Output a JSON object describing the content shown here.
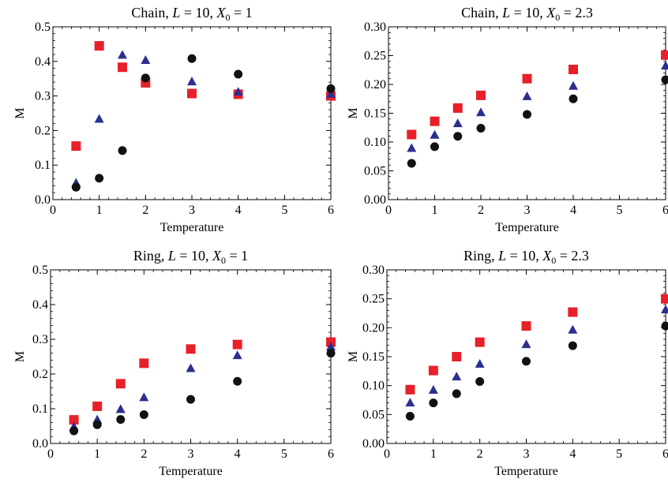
{
  "chart_data": [
    {
      "type": "scatter",
      "title": "Chain, L = 10, X0 = 1",
      "title_parts": {
        "prefix": "Chain, ",
        "L": "L",
        "eq1": " = 10, ",
        "X": "X",
        "sub": "0",
        "eq2": " = 1"
      },
      "xlabel": "Temperature",
      "ylabel": "M",
      "xlim": [
        0,
        6
      ],
      "ylim": [
        0,
        0.5
      ],
      "xticks": [
        "0",
        "1",
        "2",
        "3",
        "4",
        "5",
        "6"
      ],
      "yticks": [
        "0.0",
        "0.1",
        "0.2",
        "0.3",
        "0.4",
        "0.5"
      ],
      "x": [
        0.5,
        1,
        1.5,
        2,
        3,
        4,
        6
      ],
      "series": [
        {
          "marker": "square",
          "color": "#e8202a",
          "values": [
            0.155,
            0.445,
            0.383,
            0.338,
            0.307,
            0.305,
            0.3
          ]
        },
        {
          "marker": "triangle",
          "color": "#2b2f8f",
          "values": [
            0.048,
            0.233,
            0.418,
            0.403,
            0.341,
            0.311,
            0.305
          ]
        },
        {
          "marker": "circle",
          "color": "#111111",
          "values": [
            0.036,
            0.062,
            0.142,
            0.352,
            0.408,
            0.363,
            0.321
          ]
        }
      ]
    },
    {
      "type": "scatter",
      "title": "Chain, L = 10, X0 = 2.3",
      "title_parts": {
        "prefix": "Chain, ",
        "L": "L",
        "eq1": " = 10, ",
        "X": "X",
        "sub": "0",
        "eq2": " = 2.3"
      },
      "xlabel": "Temperature",
      "ylabel": "M",
      "xlim": [
        0,
        6
      ],
      "ylim": [
        0,
        0.3
      ],
      "xticks": [
        "0",
        "1",
        "2",
        "3",
        "4",
        "5",
        "6"
      ],
      "yticks": [
        "0.00",
        "0.05",
        "0.10",
        "0.15",
        "0.20",
        "0.25",
        "0.30"
      ],
      "x": [
        0.5,
        1,
        1.5,
        2,
        3,
        4,
        6
      ],
      "series": [
        {
          "marker": "square",
          "color": "#e8202a",
          "values": [
            0.113,
            0.136,
            0.159,
            0.181,
            0.21,
            0.226,
            0.251
          ]
        },
        {
          "marker": "triangle",
          "color": "#2b2f8f",
          "values": [
            0.089,
            0.112,
            0.132,
            0.151,
            0.179,
            0.197,
            0.232
          ]
        },
        {
          "marker": "circle",
          "color": "#111111",
          "values": [
            0.063,
            0.092,
            0.11,
            0.124,
            0.148,
            0.175,
            0.208
          ]
        }
      ]
    },
    {
      "type": "scatter",
      "title": "Ring, L = 10, X0 = 1",
      "title_parts": {
        "prefix": "Ring, ",
        "L": "L",
        "eq1": " = 10, ",
        "X": "X",
        "sub": "0",
        "eq2": " = 1"
      },
      "xlabel": "Temperature",
      "ylabel": "M",
      "xlim": [
        0,
        6
      ],
      "ylim": [
        0,
        0.5
      ],
      "xticks": [
        "0",
        "1",
        "2",
        "3",
        "4",
        "5",
        "6"
      ],
      "yticks": [
        "0.0",
        "0.1",
        "0.2",
        "0.3",
        "0.4",
        "0.5"
      ],
      "x": [
        0.5,
        1,
        1.5,
        2,
        3,
        4,
        6
      ],
      "series": [
        {
          "marker": "square",
          "color": "#e8202a",
          "values": [
            0.068,
            0.107,
            0.172,
            0.231,
            0.272,
            0.285,
            0.292
          ]
        },
        {
          "marker": "triangle",
          "color": "#2b2f8f",
          "values": [
            0.048,
            0.068,
            0.098,
            0.132,
            0.216,
            0.253,
            0.278
          ]
        },
        {
          "marker": "circle",
          "color": "#111111",
          "values": [
            0.036,
            0.054,
            0.069,
            0.083,
            0.127,
            0.179,
            0.26
          ]
        }
      ]
    },
    {
      "type": "scatter",
      "title": "Ring, L = 10, X0 = 2.3",
      "title_parts": {
        "prefix": "Ring, ",
        "L": "L",
        "eq1": " = 10, ",
        "X": "X",
        "sub": "0",
        "eq2": " = 2.3"
      },
      "xlabel": "Temperature",
      "ylabel": "M",
      "xlim": [
        0,
        6
      ],
      "ylim": [
        0,
        0.3
      ],
      "xticks": [
        "0",
        "1",
        "2",
        "3",
        "4",
        "5",
        "6"
      ],
      "yticks": [
        "0.00",
        "0.05",
        "0.10",
        "0.15",
        "0.20",
        "0.25",
        "0.30"
      ],
      "x": [
        0.5,
        1,
        1.5,
        2,
        3,
        4,
        6
      ],
      "series": [
        {
          "marker": "square",
          "color": "#e8202a",
          "values": [
            0.093,
            0.126,
            0.15,
            0.175,
            0.203,
            0.227,
            0.25
          ]
        },
        {
          "marker": "triangle",
          "color": "#2b2f8f",
          "values": [
            0.07,
            0.092,
            0.115,
            0.137,
            0.171,
            0.196,
            0.231
          ]
        },
        {
          "marker": "circle",
          "color": "#111111",
          "values": [
            0.047,
            0.07,
            0.086,
            0.107,
            0.142,
            0.169,
            0.203
          ]
        }
      ]
    }
  ]
}
